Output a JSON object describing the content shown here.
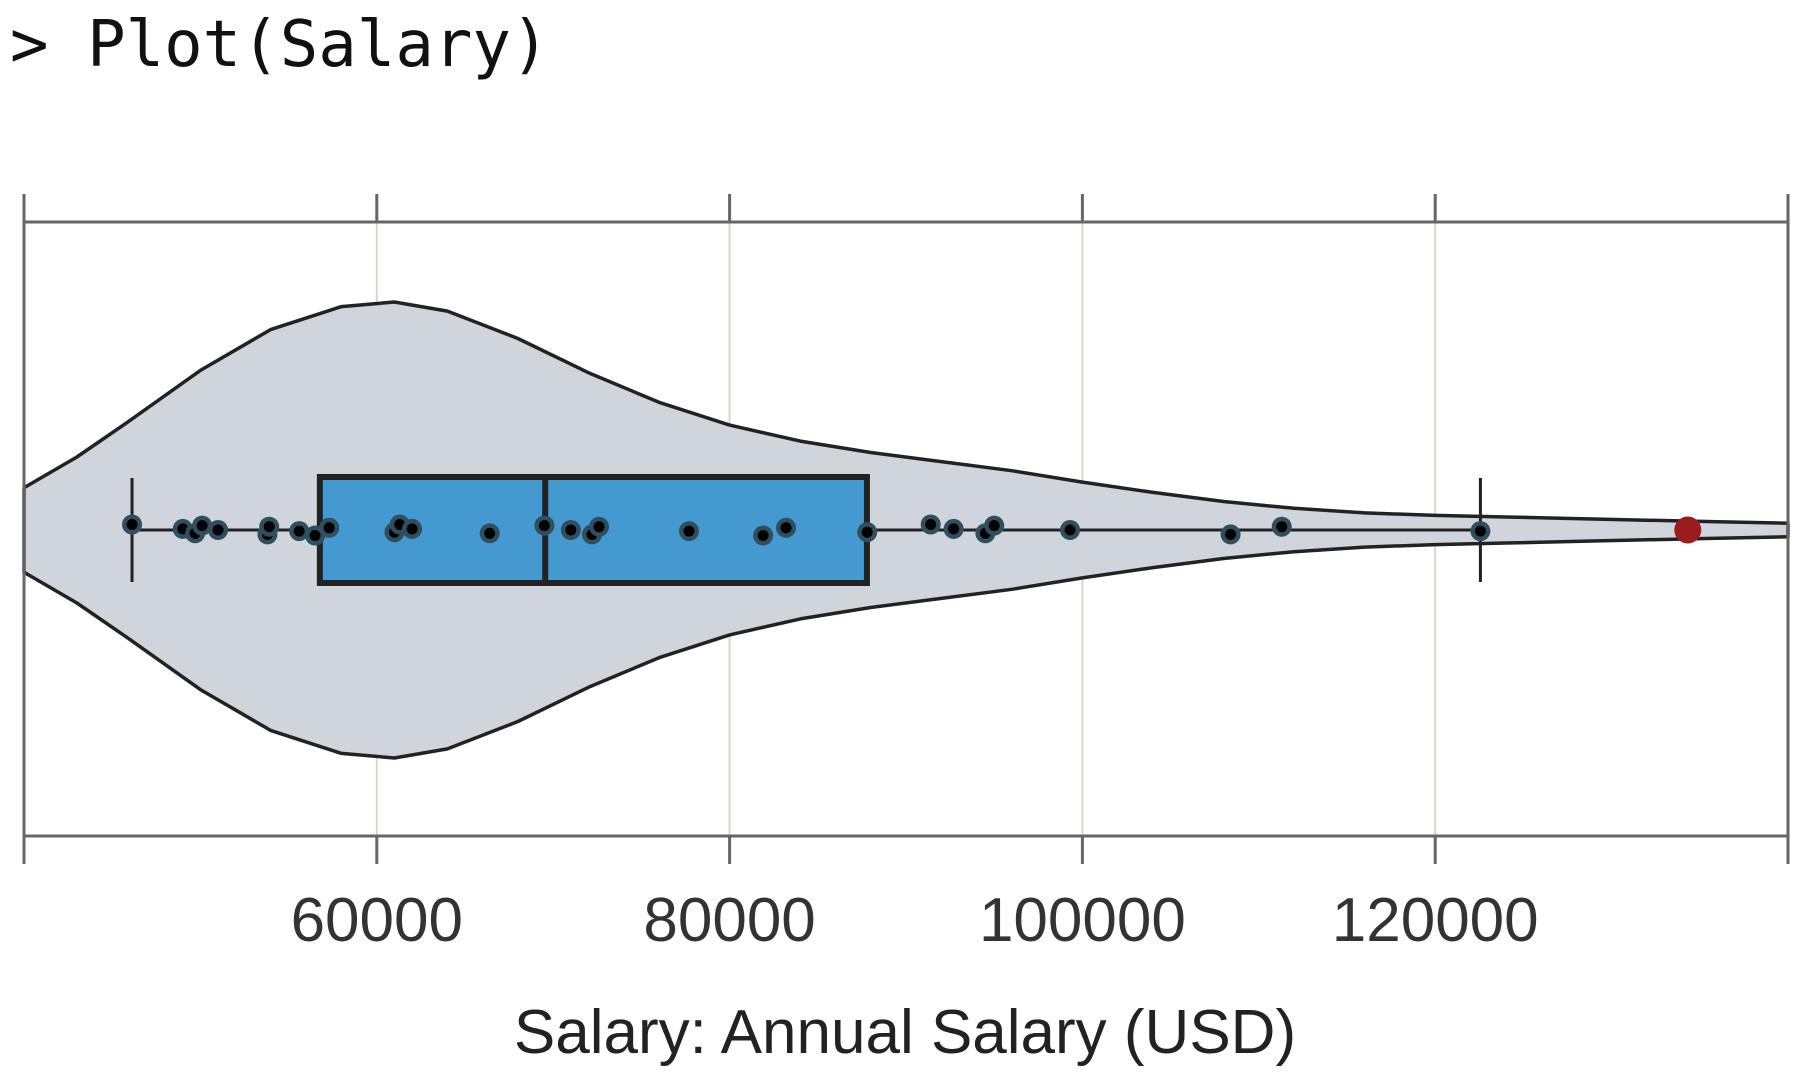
{
  "console": {
    "prompt": ">",
    "command": "Plot(Salary)"
  },
  "colors": {
    "violet_fill": "#cfd5da",
    "violet_stroke": "#222222",
    "box_fill": "#4499d0",
    "box_stroke": "#222222",
    "point_fill": "#000000",
    "point_ring": "#2f4f5f",
    "outlier": "#9b1c1c",
    "grid": "#d6d6cc",
    "frame": "#666666"
  },
  "chart_data": {
    "type": "violin-box-strip",
    "xlabel": "Salary: Annual Salary (USD)",
    "xlim": [
      40000,
      140000
    ],
    "ticks": [
      {
        "value": 60000,
        "label": "60000"
      },
      {
        "value": 80000,
        "label": "80000"
      },
      {
        "value": 100000,
        "label": "100000"
      },
      {
        "value": 120000,
        "label": "120000"
      }
    ],
    "grid": true,
    "box": {
      "whisker_low": 46124,
      "q1": 56772,
      "median": 69547,
      "q3": 87786,
      "whisker_high": 122563
    },
    "outliers": [
      134319
    ],
    "points": [
      46124,
      49000,
      49700,
      50100,
      51000,
      53800,
      53900,
      55600,
      56500,
      57300,
      61000,
      61300,
      62000,
      66400,
      69500,
      71000,
      72200,
      72600,
      77700,
      81900,
      83200,
      87800,
      91400,
      92700,
      94500,
      95000,
      99300,
      108400,
      111300,
      122563
    ],
    "density": [
      {
        "x": 40000,
        "h": 0.185
      },
      {
        "x": 43000,
        "h": 0.32
      },
      {
        "x": 46000,
        "h": 0.48
      },
      {
        "x": 50000,
        "h": 0.7
      },
      {
        "x": 54000,
        "h": 0.88
      },
      {
        "x": 58000,
        "h": 0.98
      },
      {
        "x": 61000,
        "h": 1.0
      },
      {
        "x": 64000,
        "h": 0.96
      },
      {
        "x": 68000,
        "h": 0.84
      },
      {
        "x": 72000,
        "h": 0.69
      },
      {
        "x": 76000,
        "h": 0.56
      },
      {
        "x": 80000,
        "h": 0.46
      },
      {
        "x": 84000,
        "h": 0.39
      },
      {
        "x": 88000,
        "h": 0.34
      },
      {
        "x": 92000,
        "h": 0.3
      },
      {
        "x": 96000,
        "h": 0.26
      },
      {
        "x": 100000,
        "h": 0.21
      },
      {
        "x": 104000,
        "h": 0.165
      },
      {
        "x": 108000,
        "h": 0.125
      },
      {
        "x": 112000,
        "h": 0.095
      },
      {
        "x": 116000,
        "h": 0.075
      },
      {
        "x": 120000,
        "h": 0.064
      },
      {
        "x": 124000,
        "h": 0.057
      },
      {
        "x": 128000,
        "h": 0.05
      },
      {
        "x": 132000,
        "h": 0.043
      },
      {
        "x": 136000,
        "h": 0.036
      },
      {
        "x": 140000,
        "h": 0.03
      }
    ]
  }
}
